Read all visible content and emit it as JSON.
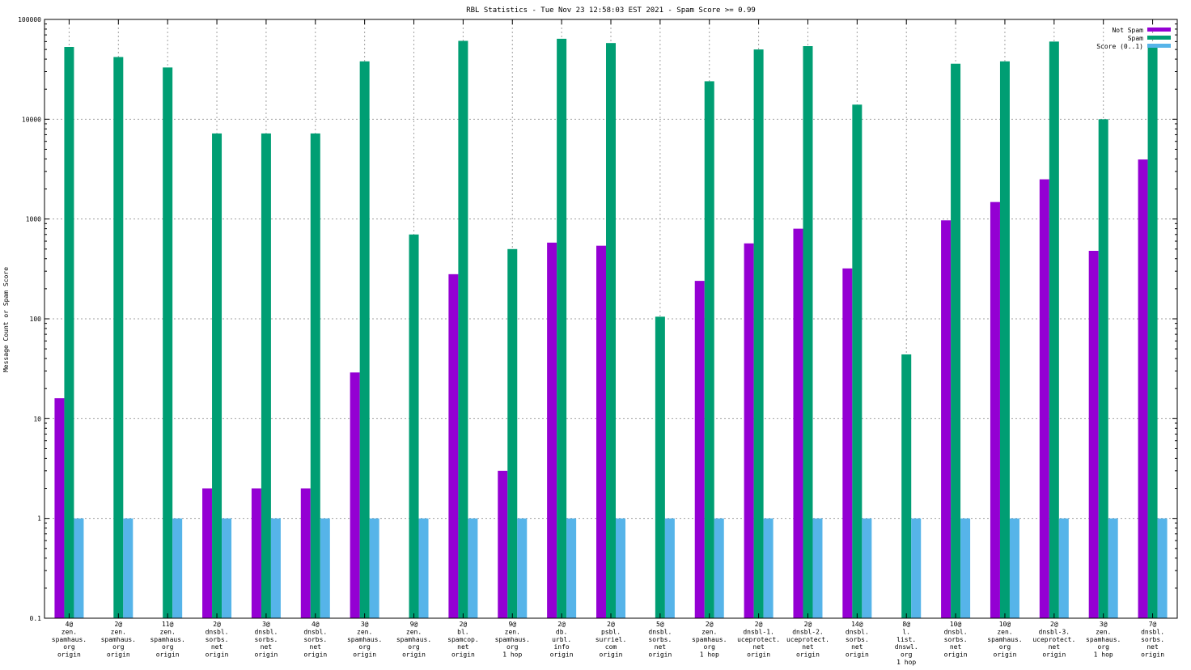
{
  "chart_data": {
    "type": "bar",
    "title": "RBL Statistics - Tue Nov 23 12:58:03 EST 2021 - Spam Score >= 0.99",
    "ylabel": "Message Count or Spam Score",
    "xlabel": "",
    "yscale": "log",
    "ylim": [
      0.1,
      100000
    ],
    "yticks": [
      0.1,
      1,
      10,
      100,
      1000,
      10000,
      100000
    ],
    "ytick_labels": [
      "0.1",
      "1",
      "10",
      "100",
      "1000",
      "10000",
      "100000"
    ],
    "grid": true,
    "legend_position": "top-right",
    "categories": [
      [
        "4@",
        "zen.",
        "spamhaus.",
        "org",
        "origin"
      ],
      [
        "2@",
        "zen.",
        "spamhaus.",
        "org",
        "origin"
      ],
      [
        "11@",
        "zen.",
        "spamhaus.",
        "org",
        "origin"
      ],
      [
        "2@",
        "dnsbl.",
        "sorbs.",
        "net",
        "origin"
      ],
      [
        "3@",
        "dnsbl.",
        "sorbs.",
        "net",
        "origin"
      ],
      [
        "4@",
        "dnsbl.",
        "sorbs.",
        "net",
        "origin"
      ],
      [
        "3@",
        "zen.",
        "spamhaus.",
        "org",
        "origin"
      ],
      [
        "9@",
        "zen.",
        "spamhaus.",
        "org",
        "origin"
      ],
      [
        "2@",
        "bl.",
        "spamcop.",
        "net",
        "origin"
      ],
      [
        "9@",
        "zen.",
        "spamhaus.",
        "org",
        "1 hop"
      ],
      [
        "2@",
        "db.",
        "urbl.",
        "info",
        "origin"
      ],
      [
        "2@",
        "psbl.",
        "surriel.",
        "com",
        "origin"
      ],
      [
        "5@",
        "dnsbl.",
        "sorbs.",
        "net",
        "origin"
      ],
      [
        "2@",
        "zen.",
        "spamhaus.",
        "org",
        "1 hop"
      ],
      [
        "2@",
        "dnsbl-1.",
        "uceprotect.",
        "net",
        "origin"
      ],
      [
        "2@",
        "dnsbl-2.",
        "uceprotect.",
        "net",
        "origin"
      ],
      [
        "14@",
        "dnsbl.",
        "sorbs.",
        "net",
        "origin"
      ],
      [
        "8@",
        "l.",
        "list.",
        "dnswl.",
        "org",
        "1 hop"
      ],
      [
        "10@",
        "dnsbl.",
        "sorbs.",
        "net",
        "origin"
      ],
      [
        "10@",
        "zen.",
        "spamhaus.",
        "org",
        "origin"
      ],
      [
        "2@",
        "dnsbl-3.",
        "uceprotect.",
        "net",
        "origin"
      ],
      [
        "3@",
        "zen.",
        "spamhaus.",
        "org",
        "1 hop"
      ],
      [
        "7@",
        "dnsbl.",
        "sorbs.",
        "net",
        "origin"
      ]
    ],
    "series": [
      {
        "name": "Not Spam",
        "color": "#9400d3",
        "values": [
          16,
          null,
          null,
          2,
          2,
          2,
          29,
          null,
          280,
          3,
          580,
          540,
          null,
          240,
          570,
          800,
          320,
          null,
          970,
          1480,
          2500,
          480,
          3950
        ]
      },
      {
        "name": "Spam",
        "color": "#009e73",
        "values": [
          53000,
          42000,
          33000,
          7200,
          7200,
          7200,
          38000,
          700,
          61000,
          500,
          64000,
          58000,
          105,
          24000,
          50000,
          54000,
          14000,
          44,
          36000,
          38000,
          60000,
          10000,
          53000
        ]
      },
      {
        "name": "Score (0..1)",
        "color": "#56b4e9",
        "values": [
          1,
          1,
          1,
          1,
          1,
          1,
          1,
          1,
          1,
          1,
          1,
          1,
          1,
          1,
          1,
          1,
          1,
          1,
          1,
          1,
          1,
          1,
          1
        ]
      }
    ]
  }
}
